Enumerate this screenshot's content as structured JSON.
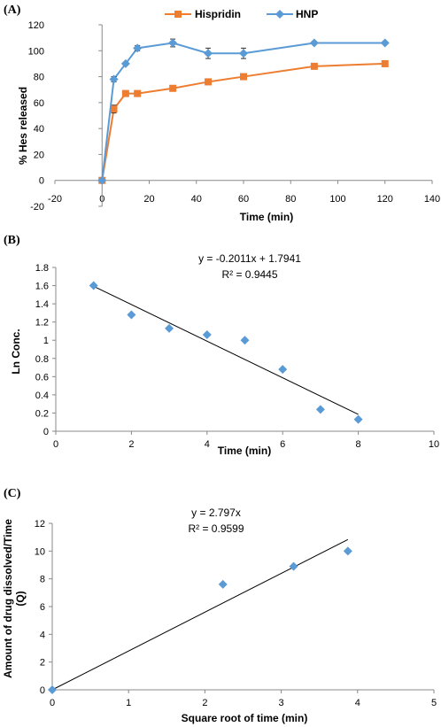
{
  "chart_data": [
    {
      "panel": "(A)",
      "type": "line",
      "xlabel": "Time (min)",
      "ylabel": "% Hes released",
      "xlim": [
        -20,
        140
      ],
      "ylim": [
        -20,
        120
      ],
      "xticks": [
        "-20",
        "0",
        "20",
        "40",
        "60",
        "80",
        "100",
        "120",
        "140"
      ],
      "yticks": [
        "-20",
        "0",
        "20",
        "40",
        "60",
        "80",
        "100",
        "120"
      ],
      "legend": "top",
      "grid": false,
      "series": [
        {
          "name": "Hispridin",
          "color": "#ED7D31",
          "marker": "square",
          "x": [
            0,
            5,
            10,
            15,
            30,
            45,
            60,
            90,
            120
          ],
          "y": [
            0,
            55,
            67,
            67,
            71,
            76,
            80,
            88,
            90
          ],
          "err": [
            0,
            3,
            2,
            1,
            2,
            1,
            1,
            1,
            1
          ]
        },
        {
          "name": "HNP",
          "color": "#5B9BD5",
          "marker": "diamond",
          "x": [
            0,
            5,
            10,
            15,
            30,
            45,
            60,
            90,
            120
          ],
          "y": [
            0,
            78,
            90,
            102,
            106,
            98,
            98,
            106,
            106
          ],
          "err": [
            0,
            2,
            1,
            2,
            3,
            4,
            4,
            1,
            1
          ]
        }
      ]
    },
    {
      "panel": "(B)",
      "type": "scatter",
      "xlabel": "Time (min)",
      "ylabel": "Ln Conc.",
      "xlim": [
        0,
        10
      ],
      "ylim": [
        0,
        1.8
      ],
      "xticks": [
        "0",
        "2",
        "4",
        "6",
        "8",
        "10"
      ],
      "yticks": [
        "0",
        "0.2",
        "0.4",
        "0.6",
        "0.8",
        "1",
        "1.2",
        "1.4",
        "1.6",
        "1.8"
      ],
      "grid": false,
      "points": {
        "x": [
          1,
          2,
          3,
          4,
          5,
          6,
          7,
          8
        ],
        "y": [
          1.6,
          1.28,
          1.13,
          1.06,
          1.0,
          0.68,
          0.24,
          0.13
        ]
      },
      "trendline": {
        "slope": -0.2011,
        "intercept": 1.7941,
        "x_range": [
          1,
          8
        ]
      },
      "equation": "y = -0.2011x + 1.7941",
      "r2": "R² = 0.9445",
      "color": "#5B9BD5"
    },
    {
      "panel": "(C)",
      "type": "scatter",
      "xlabel": "Square root of time (min)",
      "ylabel_line1": "Amount of drug dissolved/Time",
      "ylabel_line2": "(Q)",
      "xlim": [
        0,
        5
      ],
      "ylim": [
        0,
        12
      ],
      "xticks": [
        "0",
        "1",
        "2",
        "3",
        "4",
        "5"
      ],
      "yticks": [
        "0",
        "2",
        "4",
        "6",
        "8",
        "10",
        "12"
      ],
      "grid": false,
      "points": {
        "x": [
          0,
          2.236,
          3.162,
          3.873
        ],
        "y": [
          0,
          7.6,
          8.9,
          10.0
        ]
      },
      "trendline": {
        "slope": 2.797,
        "intercept": 0,
        "x_range": [
          0,
          3.873
        ]
      },
      "equation": "y = 2.797x",
      "r2": "R² = 0.9599",
      "color": "#5B9BD5"
    }
  ]
}
